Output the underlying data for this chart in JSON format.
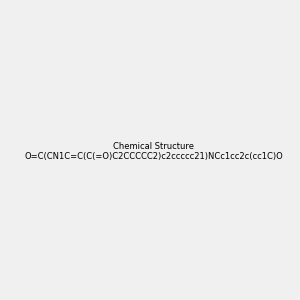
{
  "smiles": "O=C(CN1C=C(C(=O)C2CCCCC2)c2ccccc21)NCc1cc2c(cc1C)OCCO2",
  "image_size": 300,
  "background_color": "#f0f0f0",
  "atom_colors": {
    "N": "#0000ff",
    "O": "#ff0000",
    "C": "#000000"
  }
}
